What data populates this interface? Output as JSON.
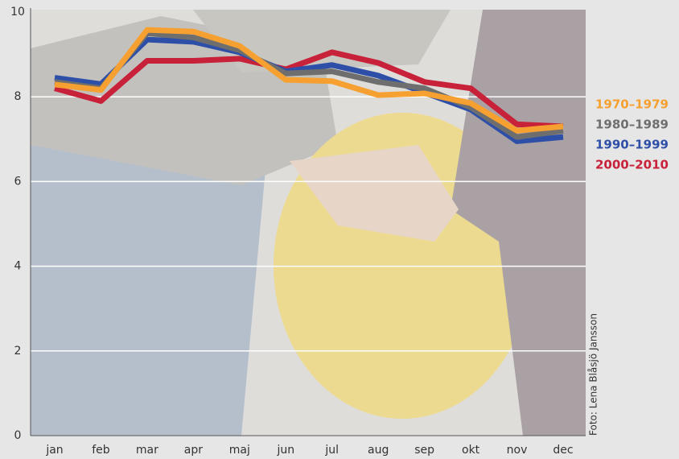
{
  "chart_data": {
    "type": "line",
    "categories": [
      "jan",
      "feb",
      "mar",
      "apr",
      "maj",
      "jun",
      "jul",
      "aug",
      "sep",
      "okt",
      "nov",
      "dec"
    ],
    "series": [
      {
        "name": "2000–2010",
        "color": "#c8213a",
        "values": [
          8.2,
          7.9,
          8.85,
          8.85,
          8.9,
          8.65,
          9.05,
          8.8,
          8.35,
          8.2,
          7.35,
          7.3
        ]
      },
      {
        "name": "1990–1999",
        "color": "#2e4fa8",
        "values": [
          8.45,
          8.3,
          9.35,
          9.3,
          9.05,
          8.6,
          8.75,
          8.5,
          8.1,
          7.7,
          6.95,
          7.05
        ]
      },
      {
        "name": "1980–1989",
        "color": "#6e6e6e",
        "values": [
          8.35,
          8.2,
          9.5,
          9.4,
          9.1,
          8.55,
          8.6,
          8.35,
          8.2,
          7.75,
          7.05,
          7.2
        ]
      },
      {
        "name": "1970–1979",
        "color": "#f5a030",
        "values": [
          8.29,
          8.16,
          9.58,
          9.54,
          9.2,
          8.4,
          8.37,
          8.04,
          8.08,
          7.85,
          7.2,
          7.3
        ]
      }
    ],
    "ylim": [
      0,
      10
    ],
    "yticks": [
      0,
      2,
      4,
      6,
      8,
      10
    ],
    "grid": true,
    "photo_credit": "Foto: Lena Blåsjö Jansson"
  }
}
